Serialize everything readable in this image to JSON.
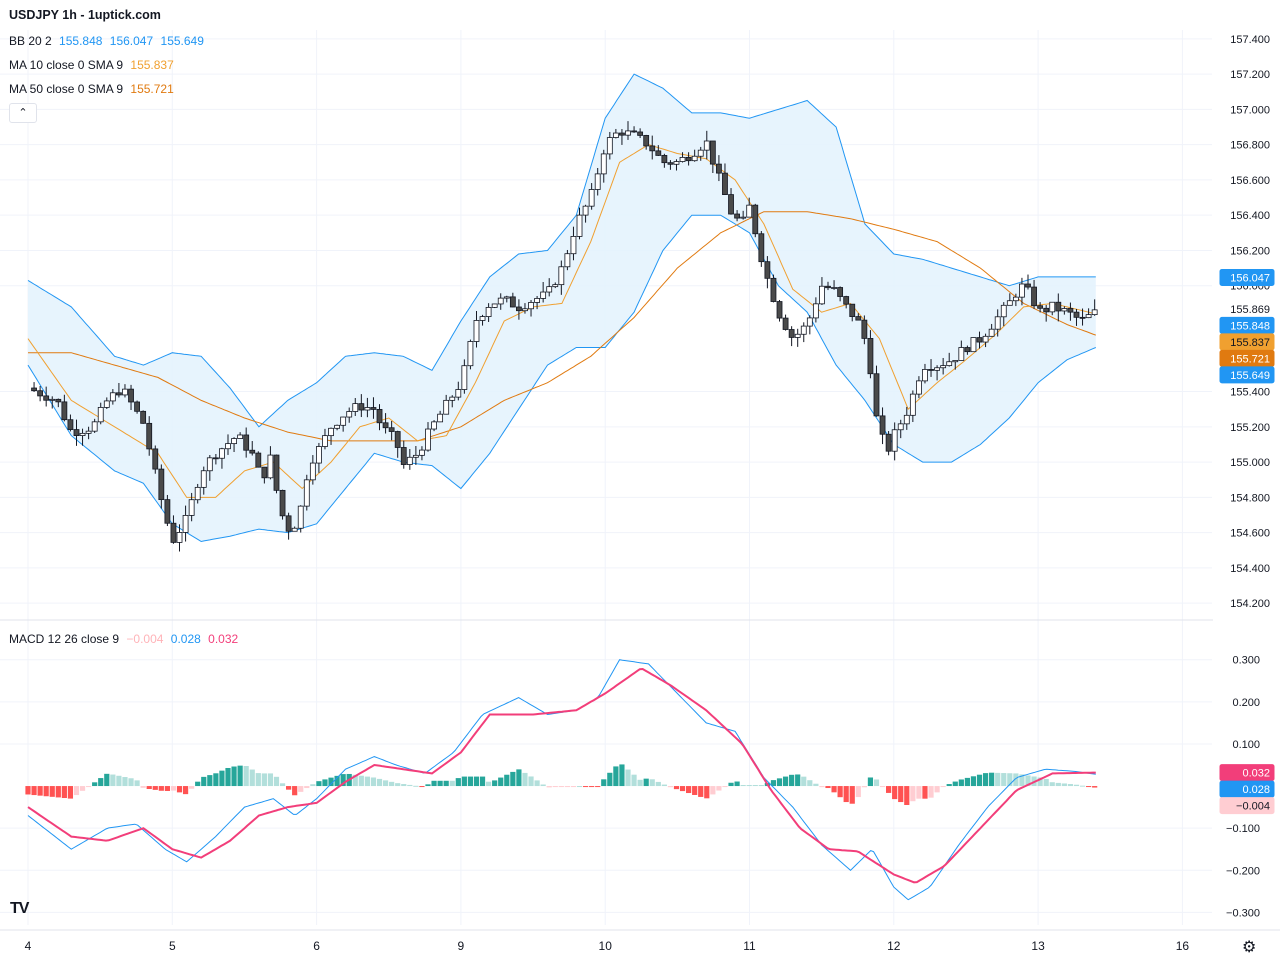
{
  "header": {
    "title": "USDJPY 1h - 1uptick.com",
    "bb": {
      "label": "BB 20 2",
      "basis": "155.848",
      "upper": "156.047",
      "lower": "155.649"
    },
    "ma10": {
      "label": "MA 10 close 0 SMA 9",
      "value": "155.837"
    },
    "ma50": {
      "label": "MA 50 close 0 SMA 9",
      "value": "155.721"
    },
    "macd": {
      "label": "MACD 12 26 close 9",
      "hist": "−0.004",
      "macd": "0.028",
      "signal": "0.032"
    },
    "collapse_icon": "chevron-up-icon",
    "logo": "TV"
  },
  "colors": {
    "up": "#ffffff",
    "down": "#4a4a4a",
    "wick": "#131722",
    "bb": "#2196f3",
    "bb_fill": "#e3f2fd",
    "ma10": "#f0a030",
    "ma50": "#e07a10",
    "macd": "#2196f3",
    "signal": "#f23e7a",
    "hist_up_strong": "#26a69a",
    "hist_up_weak": "#b2dfdb",
    "hist_down_strong": "#ff5252",
    "hist_down_weak": "#ffcdd2"
  },
  "price_axis": {
    "ticks": [
      "157.400",
      "157.200",
      "157.000",
      "156.800",
      "156.600",
      "156.400",
      "156.200",
      "156.000",
      "155.400",
      "155.200",
      "155.000",
      "154.800",
      "154.600",
      "154.400",
      "154.200"
    ],
    "badges": [
      {
        "value": "156.047",
        "color": "#2196f3",
        "text_color": "#ffffff"
      },
      {
        "value": "155.869",
        "color": "#ffffff",
        "text_color": "#131722"
      },
      {
        "value": "155.848",
        "color": "#2196f3",
        "text_color": "#ffffff"
      },
      {
        "value": "155.837",
        "color": "#f0a030",
        "text_color": "#131722"
      },
      {
        "value": "155.721",
        "color": "#e07a10",
        "text_color": "#ffffff"
      },
      {
        "value": "155.649",
        "color": "#2196f3",
        "text_color": "#ffffff"
      }
    ]
  },
  "macd_axis": {
    "ticks": [
      "0.300",
      "0.200",
      "0.100",
      "−0.100",
      "−0.200",
      "−0.300"
    ],
    "badges": [
      {
        "value": "0.032",
        "color": "#f23e7a",
        "text_color": "#ffffff"
      },
      {
        "value": "0.028",
        "color": "#2196f3",
        "text_color": "#ffffff"
      },
      {
        "value": "−0.004",
        "color": "#ffcdd2",
        "text_color": "#131722"
      }
    ]
  },
  "x_axis": {
    "labels": [
      "4",
      "5",
      "6",
      "9",
      "10",
      "11",
      "12",
      "13",
      "16"
    ]
  },
  "chart_data": {
    "type": "candlestick",
    "symbol": "USDJPY",
    "timeframe": "1h",
    "ylim": [
      154.15,
      157.45
    ],
    "x_range": [
      0.0,
      8.85
    ],
    "price_anchors": [
      [
        0.0,
        155.42
      ],
      [
        0.2,
        155.35
      ],
      [
        0.3,
        155.17
      ],
      [
        0.45,
        155.2
      ],
      [
        0.55,
        155.35
      ],
      [
        0.65,
        155.42
      ],
      [
        0.8,
        155.22
      ],
      [
        0.92,
        154.8
      ],
      [
        1.0,
        154.55
      ],
      [
        1.1,
        154.68
      ],
      [
        1.2,
        154.95
      ],
      [
        1.3,
        155.05
      ],
      [
        1.45,
        155.15
      ],
      [
        1.55,
        155.05
      ],
      [
        1.62,
        154.9
      ],
      [
        1.68,
        155.02
      ],
      [
        1.75,
        154.72
      ],
      [
        1.82,
        154.6
      ],
      [
        1.88,
        154.7
      ],
      [
        1.95,
        155.0
      ],
      [
        2.0,
        155.05
      ],
      [
        2.1,
        155.2
      ],
      [
        2.2,
        155.28
      ],
      [
        2.3,
        155.32
      ],
      [
        2.4,
        155.3
      ],
      [
        2.45,
        155.2
      ],
      [
        2.55,
        155.12
      ],
      [
        2.6,
        154.98
      ],
      [
        2.7,
        155.05
      ],
      [
        2.8,
        155.2
      ],
      [
        2.88,
        155.3
      ],
      [
        3.0,
        155.45
      ],
      [
        3.05,
        155.6
      ],
      [
        3.1,
        155.8
      ],
      [
        3.2,
        155.9
      ],
      [
        3.3,
        155.92
      ],
      [
        3.4,
        155.88
      ],
      [
        3.5,
        155.92
      ],
      [
        3.6,
        155.95
      ],
      [
        3.7,
        156.1
      ],
      [
        3.8,
        156.35
      ],
      [
        3.9,
        156.5
      ],
      [
        4.0,
        156.8
      ],
      [
        4.1,
        156.88
      ],
      [
        4.2,
        156.85
      ],
      [
        4.3,
        156.8
      ],
      [
        4.4,
        156.7
      ],
      [
        4.5,
        156.7
      ],
      [
        4.6,
        156.75
      ],
      [
        4.7,
        156.82
      ],
      [
        4.8,
        156.58
      ],
      [
        4.88,
        156.4
      ],
      [
        4.95,
        156.35
      ],
      [
        5.0,
        156.45
      ],
      [
        5.1,
        156.1
      ],
      [
        5.2,
        155.85
      ],
      [
        5.3,
        155.7
      ],
      [
        5.4,
        155.78
      ],
      [
        5.5,
        156.0
      ],
      [
        5.58,
        155.98
      ],
      [
        5.65,
        155.9
      ],
      [
        5.75,
        155.8
      ],
      [
        5.82,
        155.65
      ],
      [
        5.88,
        155.25
      ],
      [
        5.95,
        155.05
      ],
      [
        6.0,
        155.15
      ],
      [
        6.1,
        155.3
      ],
      [
        6.2,
        155.55
      ],
      [
        6.3,
        155.55
      ],
      [
        6.4,
        155.58
      ],
      [
        6.5,
        155.65
      ],
      [
        6.6,
        155.7
      ],
      [
        6.7,
        155.8
      ],
      [
        6.8,
        155.9
      ],
      [
        6.88,
        156.0
      ],
      [
        6.95,
        155.95
      ],
      [
        7.0,
        155.85
      ],
      [
        7.1,
        155.88
      ],
      [
        7.2,
        155.85
      ],
      [
        7.3,
        155.8
      ],
      [
        7.4,
        155.85
      ]
    ],
    "bb_upper_anchors": [
      [
        0.0,
        156.03
      ],
      [
        0.3,
        155.88
      ],
      [
        0.6,
        155.6
      ],
      [
        0.8,
        155.55
      ],
      [
        1.0,
        155.62
      ],
      [
        1.2,
        155.6
      ],
      [
        1.4,
        155.42
      ],
      [
        1.6,
        155.2
      ],
      [
        1.8,
        155.35
      ],
      [
        2.0,
        155.45
      ],
      [
        2.2,
        155.6
      ],
      [
        2.4,
        155.62
      ],
      [
        2.6,
        155.6
      ],
      [
        2.8,
        155.52
      ],
      [
        3.0,
        155.8
      ],
      [
        3.2,
        156.05
      ],
      [
        3.4,
        156.18
      ],
      [
        3.6,
        156.2
      ],
      [
        3.8,
        156.4
      ],
      [
        4.0,
        156.95
      ],
      [
        4.2,
        157.2
      ],
      [
        4.4,
        157.12
      ],
      [
        4.6,
        156.98
      ],
      [
        4.8,
        156.98
      ],
      [
        5.0,
        156.95
      ],
      [
        5.2,
        157.0
      ],
      [
        5.4,
        157.05
      ],
      [
        5.6,
        156.9
      ],
      [
        5.8,
        156.35
      ],
      [
        6.0,
        156.18
      ],
      [
        6.2,
        156.15
      ],
      [
        6.4,
        156.1
      ],
      [
        6.6,
        156.05
      ],
      [
        6.8,
        156.0
      ],
      [
        7.0,
        156.05
      ],
      [
        7.2,
        156.05
      ],
      [
        7.4,
        156.05
      ]
    ],
    "bb_lower_anchors": [
      [
        0.0,
        155.55
      ],
      [
        0.3,
        155.15
      ],
      [
        0.6,
        154.95
      ],
      [
        0.8,
        154.88
      ],
      [
        1.0,
        154.65
      ],
      [
        1.2,
        154.55
      ],
      [
        1.4,
        154.58
      ],
      [
        1.6,
        154.62
      ],
      [
        1.8,
        154.6
      ],
      [
        2.0,
        154.65
      ],
      [
        2.2,
        154.85
      ],
      [
        2.4,
        155.05
      ],
      [
        2.6,
        155.0
      ],
      [
        2.8,
        154.98
      ],
      [
        3.0,
        154.85
      ],
      [
        3.2,
        155.05
      ],
      [
        3.4,
        155.3
      ],
      [
        3.6,
        155.55
      ],
      [
        3.8,
        155.65
      ],
      [
        4.0,
        155.65
      ],
      [
        4.2,
        155.85
      ],
      [
        4.4,
        156.2
      ],
      [
        4.6,
        156.4
      ],
      [
        4.8,
        156.4
      ],
      [
        5.0,
        156.3
      ],
      [
        5.2,
        156.0
      ],
      [
        5.4,
        155.85
      ],
      [
        5.6,
        155.55
      ],
      [
        5.8,
        155.35
      ],
      [
        6.0,
        155.1
      ],
      [
        6.2,
        155.0
      ],
      [
        6.4,
        155.0
      ],
      [
        6.6,
        155.1
      ],
      [
        6.8,
        155.25
      ],
      [
        7.0,
        155.45
      ],
      [
        7.2,
        155.58
      ],
      [
        7.4,
        155.65
      ]
    ],
    "ma10_anchors": [
      [
        0.0,
        155.7
      ],
      [
        0.3,
        155.35
      ],
      [
        0.6,
        155.2
      ],
      [
        0.9,
        155.05
      ],
      [
        1.1,
        154.8
      ],
      [
        1.3,
        154.8
      ],
      [
        1.5,
        154.95
      ],
      [
        1.7,
        155.0
      ],
      [
        1.9,
        154.85
      ],
      [
        2.1,
        155.0
      ],
      [
        2.3,
        155.2
      ],
      [
        2.5,
        155.25
      ],
      [
        2.7,
        155.12
      ],
      [
        2.9,
        155.15
      ],
      [
        3.1,
        155.45
      ],
      [
        3.3,
        155.8
      ],
      [
        3.5,
        155.88
      ],
      [
        3.7,
        155.9
      ],
      [
        3.9,
        156.25
      ],
      [
        4.1,
        156.7
      ],
      [
        4.3,
        156.8
      ],
      [
        4.5,
        156.75
      ],
      [
        4.7,
        156.72
      ],
      [
        4.9,
        156.6
      ],
      [
        5.1,
        156.35
      ],
      [
        5.3,
        155.98
      ],
      [
        5.5,
        155.85
      ],
      [
        5.7,
        155.9
      ],
      [
        5.9,
        155.7
      ],
      [
        6.1,
        155.3
      ],
      [
        6.3,
        155.45
      ],
      [
        6.5,
        155.58
      ],
      [
        6.7,
        155.72
      ],
      [
        6.9,
        155.88
      ],
      [
        7.1,
        155.9
      ],
      [
        7.4,
        155.84
      ]
    ],
    "ma50_anchors": [
      [
        0.0,
        155.62
      ],
      [
        0.3,
        155.62
      ],
      [
        0.6,
        155.55
      ],
      [
        0.9,
        155.48
      ],
      [
        1.2,
        155.35
      ],
      [
        1.5,
        155.25
      ],
      [
        1.8,
        155.17
      ],
      [
        2.1,
        155.12
      ],
      [
        2.4,
        155.12
      ],
      [
        2.7,
        155.12
      ],
      [
        3.0,
        155.2
      ],
      [
        3.3,
        155.35
      ],
      [
        3.6,
        155.45
      ],
      [
        3.9,
        155.6
      ],
      [
        4.2,
        155.82
      ],
      [
        4.5,
        156.1
      ],
      [
        4.8,
        156.3
      ],
      [
        5.1,
        156.42
      ],
      [
        5.4,
        156.42
      ],
      [
        5.7,
        156.38
      ],
      [
        6.0,
        156.32
      ],
      [
        6.3,
        156.25
      ],
      [
        6.6,
        156.1
      ],
      [
        6.9,
        155.9
      ],
      [
        7.2,
        155.78
      ],
      [
        7.4,
        155.72
      ]
    ],
    "macd_ylim": [
      -0.33,
      0.335
    ],
    "macd_anchors": [
      [
        0.0,
        -0.07
      ],
      [
        0.3,
        -0.15
      ],
      [
        0.55,
        -0.1
      ],
      [
        0.75,
        -0.09
      ],
      [
        0.95,
        -0.15
      ],
      [
        1.1,
        -0.18
      ],
      [
        1.3,
        -0.12
      ],
      [
        1.5,
        -0.05
      ],
      [
        1.7,
        -0.03
      ],
      [
        1.85,
        -0.07
      ],
      [
        2.0,
        -0.03
      ],
      [
        2.2,
        0.04
      ],
      [
        2.4,
        0.07
      ],
      [
        2.55,
        0.05
      ],
      [
        2.75,
        0.03
      ],
      [
        2.95,
        0.08
      ],
      [
        3.15,
        0.17
      ],
      [
        3.4,
        0.21
      ],
      [
        3.6,
        0.17
      ],
      [
        3.8,
        0.18
      ],
      [
        3.95,
        0.21
      ],
      [
        4.1,
        0.3
      ],
      [
        4.3,
        0.29
      ],
      [
        4.5,
        0.22
      ],
      [
        4.7,
        0.15
      ],
      [
        4.9,
        0.13
      ],
      [
        5.1,
        0.02
      ],
      [
        5.3,
        -0.05
      ],
      [
        5.5,
        -0.14
      ],
      [
        5.7,
        -0.2
      ],
      [
        5.85,
        -0.15
      ],
      [
        6.0,
        -0.24
      ],
      [
        6.1,
        -0.27
      ],
      [
        6.25,
        -0.24
      ],
      [
        6.45,
        -0.14
      ],
      [
        6.65,
        -0.05
      ],
      [
        6.85,
        0.02
      ],
      [
        7.05,
        0.04
      ],
      [
        7.25,
        0.035
      ],
      [
        7.4,
        0.028
      ]
    ],
    "signal_anchors": [
      [
        0.0,
        -0.05
      ],
      [
        0.3,
        -0.12
      ],
      [
        0.55,
        -0.13
      ],
      [
        0.8,
        -0.1
      ],
      [
        1.0,
        -0.15
      ],
      [
        1.2,
        -0.17
      ],
      [
        1.4,
        -0.13
      ],
      [
        1.6,
        -0.07
      ],
      [
        1.8,
        -0.05
      ],
      [
        2.0,
        -0.04
      ],
      [
        2.2,
        0.01
      ],
      [
        2.4,
        0.05
      ],
      [
        2.6,
        0.04
      ],
      [
        2.8,
        0.03
      ],
      [
        3.0,
        0.08
      ],
      [
        3.2,
        0.17
      ],
      [
        3.5,
        0.17
      ],
      [
        3.8,
        0.18
      ],
      [
        4.0,
        0.22
      ],
      [
        4.25,
        0.28
      ],
      [
        4.45,
        0.24
      ],
      [
        4.7,
        0.18
      ],
      [
        4.95,
        0.1
      ],
      [
        5.15,
        -0.01
      ],
      [
        5.35,
        -0.1
      ],
      [
        5.55,
        -0.15
      ],
      [
        5.75,
        -0.155
      ],
      [
        6.0,
        -0.21
      ],
      [
        6.15,
        -0.23
      ],
      [
        6.35,
        -0.19
      ],
      [
        6.6,
        -0.1
      ],
      [
        6.85,
        -0.01
      ],
      [
        7.1,
        0.03
      ],
      [
        7.4,
        0.032
      ]
    ]
  }
}
